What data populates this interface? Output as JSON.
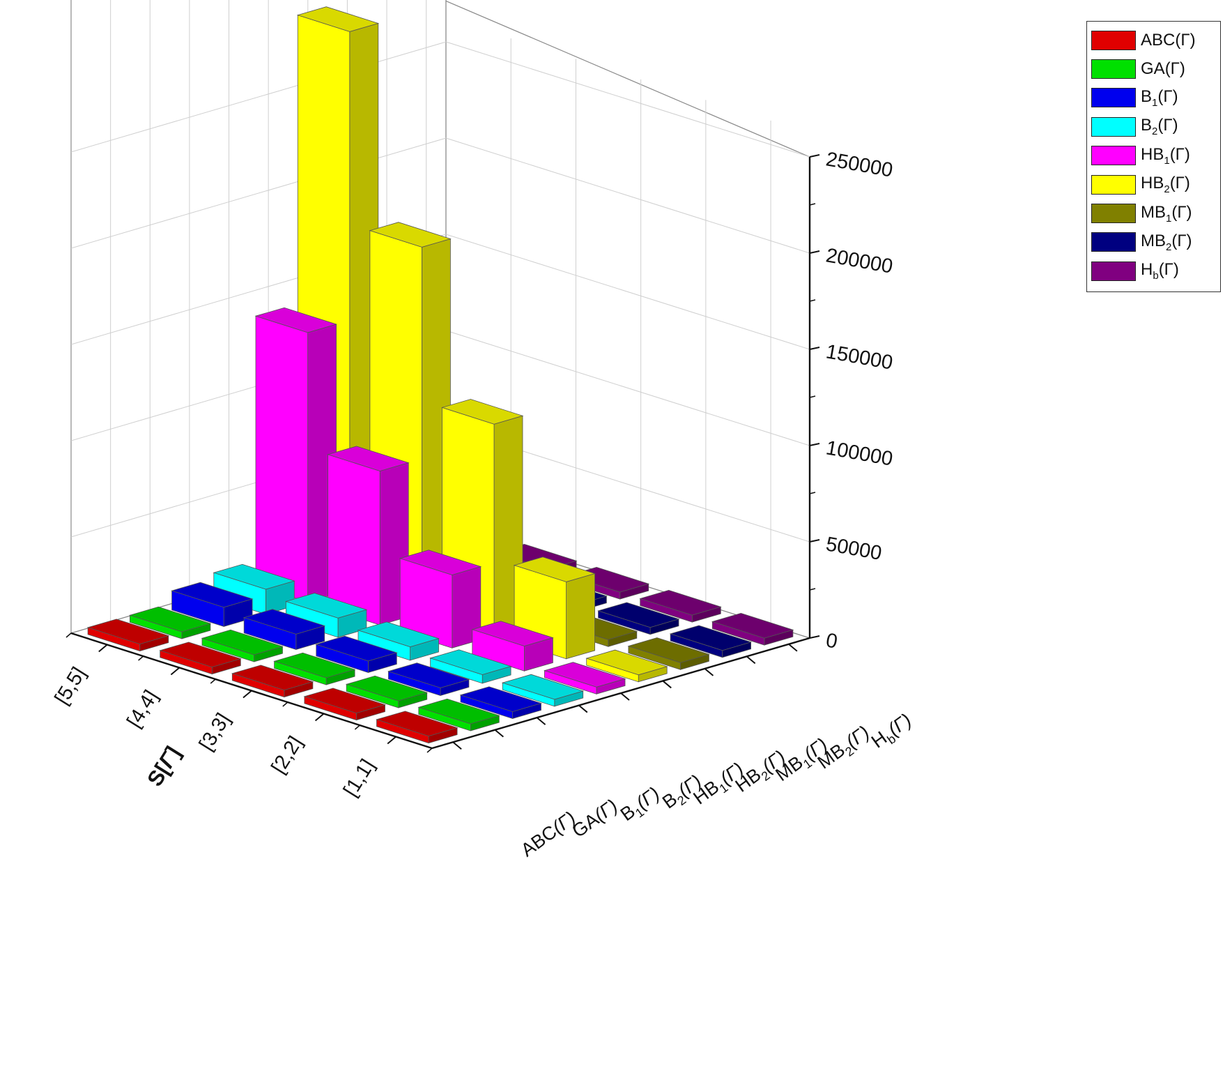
{
  "chart_data": {
    "type": "bar3d",
    "title": "",
    "zlabel": "",
    "x_axis_label_parts": [
      "S",
      "[",
      "Γ",
      "]"
    ],
    "x_categories": [
      "[1,1]",
      "[2,2]",
      "[3,3]",
      "[4,4]",
      "[5,5]"
    ],
    "series": [
      {
        "name": "ABC(Γ)",
        "base": "ABC",
        "sub": "",
        "tail": "(Γ)",
        "color": "#e00000",
        "values": [
          2,
          4,
          6,
          8,
          10
        ]
      },
      {
        "name": "GA(Γ)",
        "base": "GA",
        "sub": "",
        "tail": "(Γ)",
        "color": "#00e000",
        "values": [
          2,
          4,
          6,
          8,
          10
        ]
      },
      {
        "name": "B1(Γ)",
        "base": "B",
        "sub": "1",
        "tail": "(Γ)",
        "color": "#0000ee",
        "values": [
          2000,
          4000,
          6000,
          8000,
          10000
        ]
      },
      {
        "name": "B2(Γ)",
        "base": "B",
        "sub": "2",
        "tail": "(Γ)",
        "color": "#00ffff",
        "values": [
          2000,
          4500,
          7000,
          10000,
          13000
        ]
      },
      {
        "name": "HB1(Γ)",
        "base": "HB",
        "sub": "1",
        "tail": "(Γ)",
        "color": "#ff00ff",
        "values": [
          2000,
          13000,
          38000,
          80000,
          140000
        ]
      },
      {
        "name": "HB2(Γ)",
        "base": "HB",
        "sub": "2",
        "tail": "(Γ)",
        "color": "#ffff00",
        "values": [
          2000,
          40000,
          110000,
          190000,
          290000
        ]
      },
      {
        "name": "MB1(Γ)",
        "base": "MB",
        "sub": "1",
        "tail": "(Γ)",
        "color": "#808000",
        "values": [
          2,
          4,
          6,
          8,
          10
        ]
      },
      {
        "name": "MB2(Γ)",
        "base": "MB",
        "sub": "2",
        "tail": "(Γ)",
        "color": "#000080",
        "values": [
          2,
          4,
          6,
          8,
          10
        ]
      },
      {
        "name": "Hb(Γ)",
        "base": "H",
        "sub": "b",
        "tail": "(Γ)",
        "color": "#800080",
        "values": [
          2,
          4,
          6,
          8,
          10
        ]
      }
    ],
    "z_ticks": [
      0,
      50000,
      100000,
      150000,
      200000,
      250000
    ],
    "zlim": [
      0,
      250000
    ],
    "grid": true,
    "legend_position": "top-right"
  }
}
